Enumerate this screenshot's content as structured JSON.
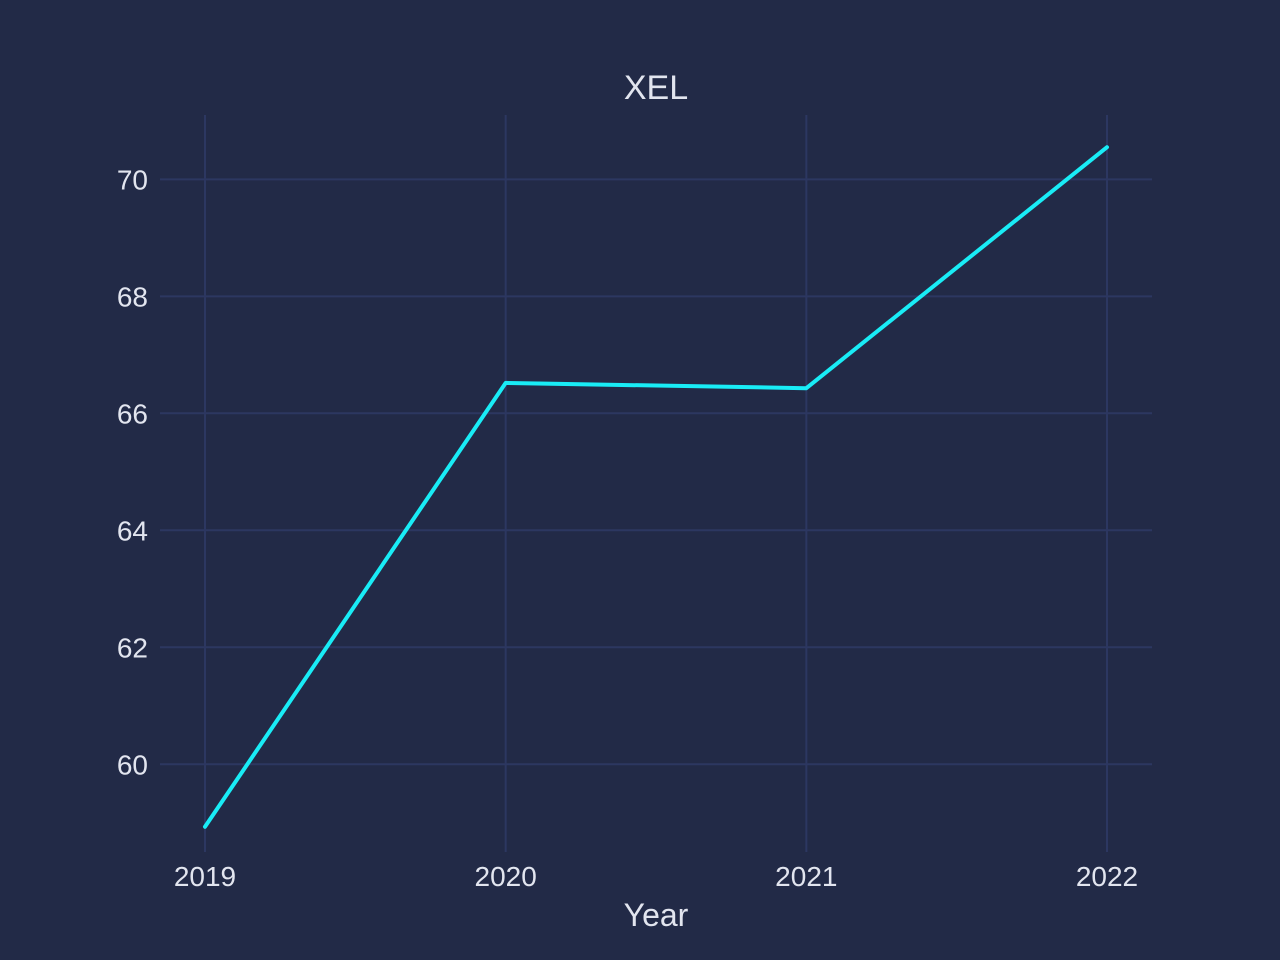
{
  "colors": {
    "background": "#222a47",
    "grid": "#2c3761",
    "text": "#e2e5ef",
    "series_line": "#19ecf6"
  },
  "chart_data": {
    "type": "line",
    "title": "XEL",
    "xlabel": "Year",
    "ylabel": "",
    "x": [
      "2019",
      "2020",
      "2021",
      "2022"
    ],
    "series": [
      {
        "values": [
          58.93,
          66.52,
          66.43,
          70.55
        ]
      }
    ],
    "xlim": [
      "2019",
      "2022"
    ],
    "ylim": [
      58.5,
      71.1
    ],
    "yticks": [
      60,
      62,
      64,
      66,
      68,
      70
    ],
    "grid": true,
    "legend": "none"
  }
}
